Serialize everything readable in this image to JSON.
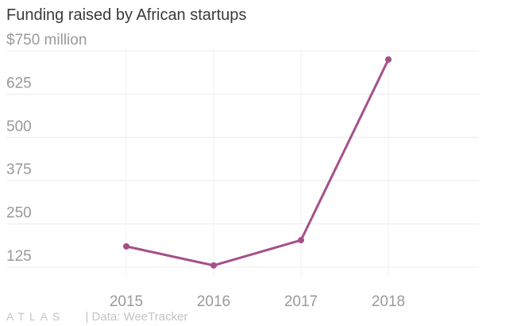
{
  "chart_data": {
    "type": "line",
    "title": "Funding raised by African startups",
    "categories": [
      "2015",
      "2016",
      "2017",
      "2018"
    ],
    "series": [
      {
        "values": [
          185,
          130,
          203,
          725
        ]
      }
    ],
    "y_ticks": [
      "$750 million",
      "625",
      "500",
      "375",
      "250",
      "125"
    ],
    "y_tick_values": [
      750,
      625,
      500,
      375,
      250,
      125
    ],
    "ylim": [
      125,
      750
    ],
    "grid": true,
    "line_color": "#a5508a"
  },
  "footer": {
    "logo": "ATLAS",
    "source": "| Data: WeeTracker"
  }
}
